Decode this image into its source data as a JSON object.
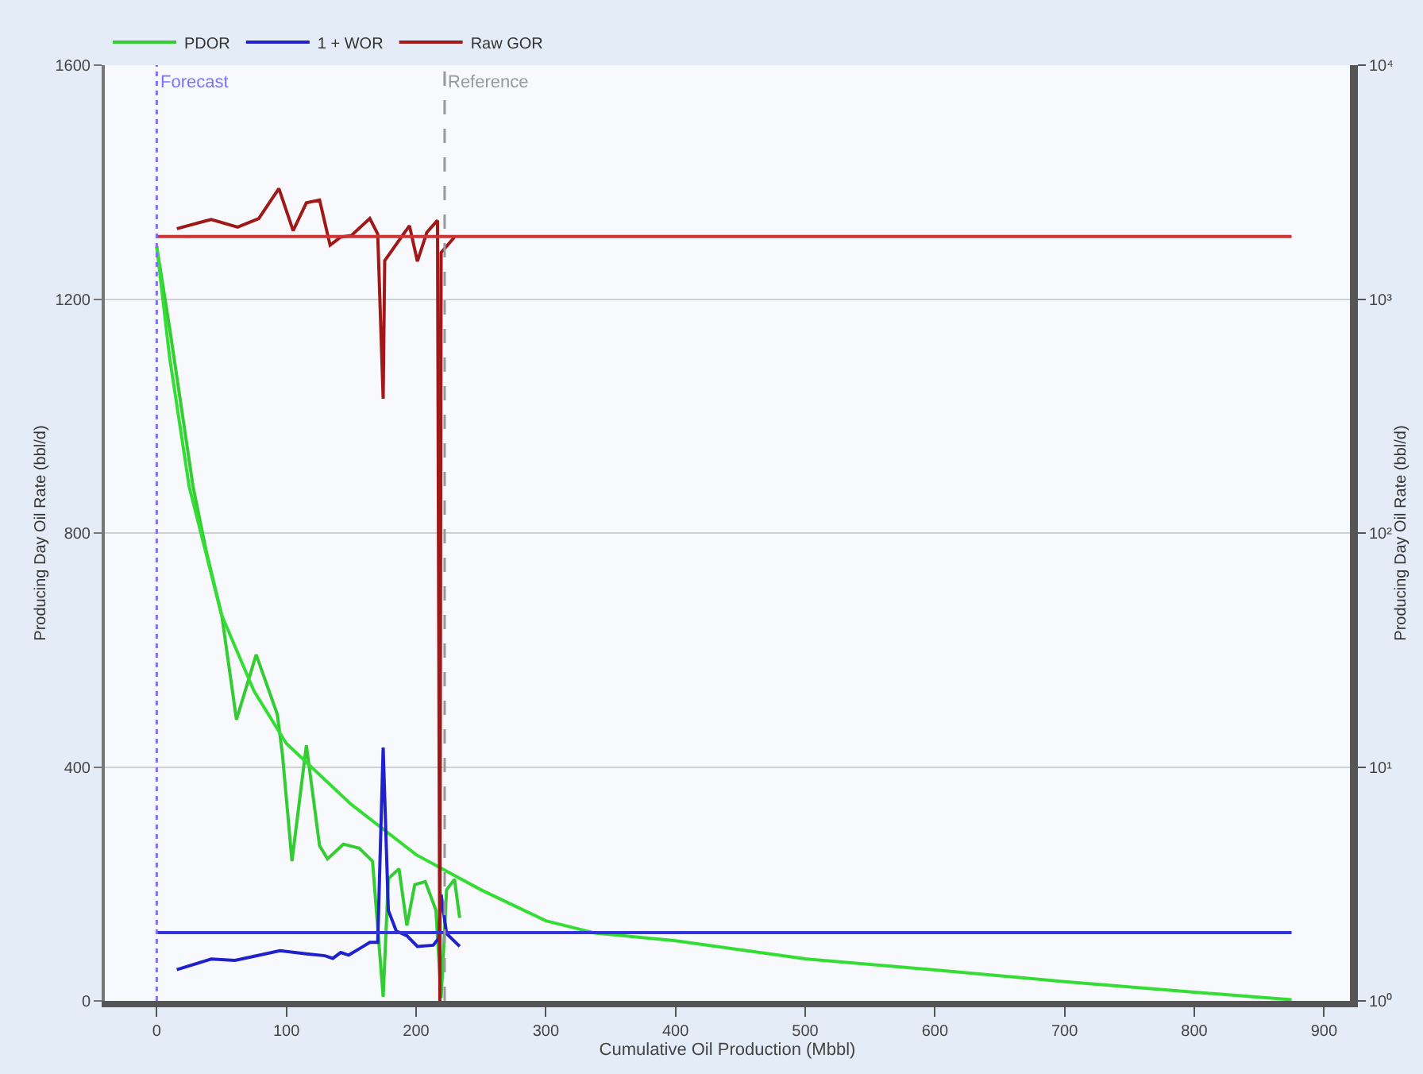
{
  "chart_data": {
    "type": "line",
    "xlabel": "Cumulative Oil Production (Mbbl)",
    "ylabel": "Producing Day Oil Rate (bbl/d)",
    "y2label": "Producing Day Oil Rate (bbl/d)",
    "xlim": [
      -40,
      920
    ],
    "xticks": [
      0,
      100,
      200,
      300,
      400,
      500,
      600,
      700,
      800,
      900
    ],
    "ylim": [
      0,
      1600
    ],
    "yticks": [
      0,
      400,
      800,
      1200,
      1600
    ],
    "y2lim": [
      1,
      10000
    ],
    "y2ticks": [
      {
        "value": 1,
        "label": "10⁰"
      },
      {
        "value": 10,
        "label": "10¹"
      },
      {
        "value": 100,
        "label": "10²"
      },
      {
        "value": 1000,
        "label": "10³"
      },
      {
        "value": 10000,
        "label": "10⁴"
      }
    ],
    "log": "y2",
    "grid": "y",
    "legend": "top left",
    "marker": "none",
    "line_style": "solid",
    "series": [
      {
        "name": "PDOR",
        "color": "#33cc33",
        "x": [
          0,
          10,
          20,
          28,
          37.9,
          50.2,
          61.5,
          76.7,
          93.0,
          97.0,
          104.3,
          115.4,
          125.6,
          131.7,
          144.0,
          156.2,
          166.4,
          174.6,
          178.6,
          186.8,
          192.9,
          199.0,
          207.1,
          215.3,
          219.3,
          223.5,
          229.6,
          233.6
        ],
        "values": [
          1290,
          1150,
          1000,
          880,
          772,
          659,
          481,
          592,
          490,
          420,
          239,
          437,
          265,
          243,
          268,
          261,
          239,
          7,
          209,
          226,
          129,
          199,
          204,
          155,
          5,
          190,
          208,
          142
        ]
      },
      {
        "name": "1 + WOR",
        "color": "#2020cc",
        "axis": "y2",
        "x": [
          15.5,
          42.0,
          60.3,
          74.6,
          95.0,
          115.4,
          129.7,
          135.8,
          141.9,
          148.0,
          156.2,
          164.3,
          170.4,
          174.6,
          178.6,
          184.7,
          192.9,
          201.0,
          213.2,
          217.4,
          219.3,
          223.5,
          233.6
        ],
        "values": [
          1.36,
          1.51,
          1.49,
          1.55,
          1.64,
          1.59,
          1.56,
          1.52,
          1.61,
          1.57,
          1.67,
          1.78,
          1.78,
          12.1,
          2.44,
          1.99,
          1.9,
          1.71,
          1.73,
          1.85,
          2.85,
          1.94,
          1.71
        ]
      },
      {
        "name": "Raw GOR",
        "color": "#a01818",
        "axis": "y2",
        "x": [
          15.5,
          42.0,
          62.4,
          78.7,
          94.2,
          105.2,
          115.4,
          125.6,
          133.7,
          141.9,
          150.1,
          164.3,
          170.4,
          174.6,
          175.8,
          194.9,
          201.0,
          208.3,
          216.5,
          218.3,
          219.3,
          229.6
        ],
        "values": [
          2000,
          2190,
          2030,
          2210,
          2970,
          1960,
          2580,
          2650,
          1700,
          1840,
          1870,
          2210,
          1900,
          375,
          1460,
          2060,
          1450,
          1930,
          2170,
          1,
          1580,
          1840
        ]
      },
      {
        "color": "#33dd33",
        "x": [
          0,
          10,
          25,
          50,
          75,
          100,
          150,
          200,
          250,
          300,
          338,
          400,
          500,
          600,
          700,
          800,
          875
        ],
        "values": [
          1290,
          1100,
          880,
          660,
          530,
          440,
          336,
          250,
          190,
          137,
          116,
          103,
          72,
          53,
          33,
          15,
          2
        ]
      },
      {
        "color": "#3333dd",
        "axis": "y2",
        "x": [
          0,
          875
        ],
        "values": [
          1.96,
          1.96
        ]
      },
      {
        "color": "#cc3333",
        "axis": "y2",
        "x": [
          0,
          875
        ],
        "values": [
          1850,
          1850
        ]
      }
    ],
    "ref_lines": [
      {
        "axis": "x",
        "value": 0,
        "label": "Forecast",
        "color": "#7f6fff",
        "line_style": "dotted"
      },
      {
        "axis": "x",
        "value": 222,
        "label": "Reference",
        "color": "#999999",
        "line_style": "dashed"
      }
    ]
  }
}
